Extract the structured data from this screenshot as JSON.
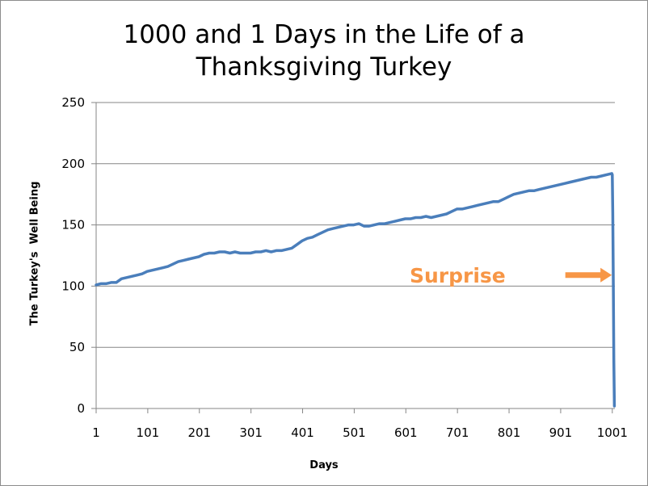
{
  "chart_data": {
    "type": "line",
    "title": "1000 and 1 Days in the Life of a Thanksgiving Turkey",
    "title_lines": [
      "1000 and 1 Days in the Life of a",
      "Thanksgiving Turkey"
    ],
    "xlabel": "Days",
    "ylabel": "The Turkey's  Well Being",
    "xlim": [
      1,
      1006
    ],
    "ylim": [
      0,
      250
    ],
    "x_ticks": [
      1,
      101,
      201,
      301,
      401,
      501,
      601,
      701,
      801,
      901,
      1001
    ],
    "y_ticks": [
      0,
      50,
      100,
      150,
      200,
      250
    ],
    "grid": "horizontal",
    "legend": "none",
    "series": [
      {
        "color": "#4a7ebb",
        "x": [
          1,
          10,
          20,
          30,
          40,
          50,
          60,
          70,
          80,
          90,
          100,
          110,
          120,
          130,
          140,
          150,
          160,
          170,
          180,
          190,
          200,
          210,
          220,
          230,
          240,
          250,
          260,
          270,
          280,
          290,
          300,
          310,
          320,
          330,
          340,
          350,
          360,
          370,
          380,
          390,
          400,
          410,
          420,
          430,
          440,
          450,
          460,
          470,
          480,
          490,
          500,
          510,
          520,
          530,
          540,
          550,
          560,
          570,
          580,
          590,
          600,
          610,
          620,
          630,
          640,
          650,
          660,
          670,
          680,
          690,
          700,
          710,
          720,
          730,
          740,
          750,
          760,
          770,
          780,
          790,
          800,
          810,
          820,
          830,
          840,
          850,
          860,
          870,
          880,
          890,
          900,
          910,
          920,
          930,
          940,
          950,
          960,
          970,
          980,
          990,
          1000,
          1001,
          1002,
          1003,
          1004,
          1005
        ],
        "y": [
          101,
          102,
          102,
          103,
          103,
          106,
          107,
          108,
          109,
          110,
          112,
          113,
          114,
          115,
          116,
          118,
          120,
          121,
          122,
          123,
          124,
          126,
          127,
          127,
          128,
          128,
          127,
          128,
          127,
          127,
          127,
          128,
          128,
          129,
          128,
          129,
          129,
          130,
          131,
          134,
          137,
          139,
          140,
          142,
          144,
          146,
          147,
          148,
          149,
          150,
          150,
          151,
          149,
          149,
          150,
          151,
          151,
          152,
          153,
          154,
          155,
          155,
          156,
          156,
          157,
          156,
          157,
          158,
          159,
          161,
          163,
          163,
          164,
          165,
          166,
          167,
          168,
          169,
          169,
          171,
          173,
          175,
          176,
          177,
          178,
          178,
          179,
          180,
          181,
          182,
          183,
          184,
          185,
          186,
          187,
          188,
          189,
          189,
          190,
          191,
          192,
          191,
          160,
          100,
          40,
          2
        ]
      }
    ],
    "annotation": {
      "text": "Surprise",
      "color": "#f79646",
      "arrow_from": [
        910,
        109
      ],
      "arrow_to": [
        1000,
        109
      ]
    }
  }
}
